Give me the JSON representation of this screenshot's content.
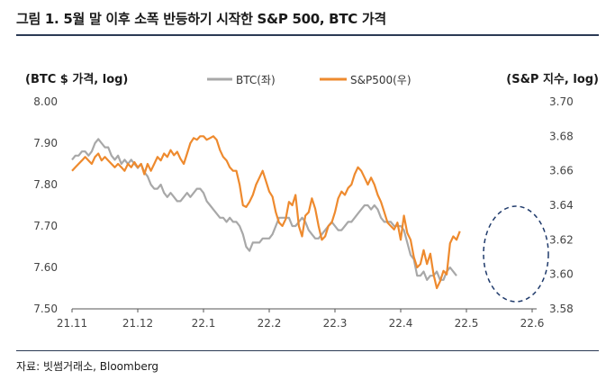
{
  "title": "그림 1. 5월 말 이후 소폭 반등하기 시작한 S&P 500, BTC 가격",
  "source": "자료: 빗썸거래소, Bloomberg",
  "colors": {
    "btc": "#a8a8a8",
    "sp500": "#ee8a2e",
    "ellipse": "#1f3a6b",
    "rule": "#2b3a55"
  },
  "chart_data": {
    "type": "line",
    "ylabel_left": "(BTC $ 가격,  log)",
    "ylabel_right": "(S&P 지수, log)",
    "x_ticks": [
      "21.11",
      "21.12",
      "22.1",
      "22.2",
      "22.3",
      "22.4",
      "22.5",
      "22.6"
    ],
    "y_left": {
      "ticks": [
        "8.00",
        "7.90",
        "7.80",
        "7.70",
        "7.60",
        "7.50"
      ],
      "range": [
        7.5,
        8.0
      ]
    },
    "y_right": {
      "ticks": [
        "3.70",
        "3.68",
        "3.66",
        "3.64",
        "3.62",
        "3.60",
        "3.58"
      ],
      "range": [
        3.58,
        3.7
      ]
    },
    "legend_position": "top-center",
    "annotation": "dashed ellipse around late May to June 2022",
    "series": [
      {
        "name": "BTC(좌)",
        "axis": "left",
        "color": "#a8a8a8",
        "points": [
          [
            0.0,
            7.86
          ],
          [
            0.05,
            7.87
          ],
          [
            0.1,
            7.87
          ],
          [
            0.15,
            7.88
          ],
          [
            0.2,
            7.88
          ],
          [
            0.25,
            7.87
          ],
          [
            0.3,
            7.88
          ],
          [
            0.35,
            7.9
          ],
          [
            0.4,
            7.91
          ],
          [
            0.45,
            7.9
          ],
          [
            0.5,
            7.89
          ],
          [
            0.55,
            7.89
          ],
          [
            0.6,
            7.87
          ],
          [
            0.65,
            7.86
          ],
          [
            0.7,
            7.87
          ],
          [
            0.75,
            7.85
          ],
          [
            0.8,
            7.86
          ],
          [
            0.85,
            7.85
          ],
          [
            0.9,
            7.86
          ],
          [
            0.95,
            7.85
          ],
          [
            1.0,
            7.84
          ],
          [
            1.05,
            7.85
          ],
          [
            1.1,
            7.83
          ],
          [
            1.15,
            7.82
          ],
          [
            1.2,
            7.8
          ],
          [
            1.25,
            7.79
          ],
          [
            1.3,
            7.79
          ],
          [
            1.35,
            7.8
          ],
          [
            1.4,
            7.78
          ],
          [
            1.45,
            7.77
          ],
          [
            1.5,
            7.78
          ],
          [
            1.55,
            7.77
          ],
          [
            1.6,
            7.76
          ],
          [
            1.65,
            7.76
          ],
          [
            1.7,
            7.77
          ],
          [
            1.75,
            7.78
          ],
          [
            1.8,
            7.77
          ],
          [
            1.85,
            7.78
          ],
          [
            1.9,
            7.79
          ],
          [
            1.95,
            7.79
          ],
          [
            2.0,
            7.78
          ],
          [
            2.05,
            7.76
          ],
          [
            2.1,
            7.75
          ],
          [
            2.15,
            7.74
          ],
          [
            2.2,
            7.73
          ],
          [
            2.25,
            7.72
          ],
          [
            2.3,
            7.72
          ],
          [
            2.35,
            7.71
          ],
          [
            2.4,
            7.72
          ],
          [
            2.45,
            7.71
          ],
          [
            2.5,
            7.71
          ],
          [
            2.55,
            7.7
          ],
          [
            2.6,
            7.68
          ],
          [
            2.65,
            7.65
          ],
          [
            2.7,
            7.64
          ],
          [
            2.75,
            7.66
          ],
          [
            2.8,
            7.66
          ],
          [
            2.85,
            7.66
          ],
          [
            2.9,
            7.67
          ],
          [
            2.95,
            7.67
          ],
          [
            3.0,
            7.67
          ],
          [
            3.05,
            7.68
          ],
          [
            3.1,
            7.7
          ],
          [
            3.15,
            7.72
          ],
          [
            3.2,
            7.72
          ],
          [
            3.25,
            7.72
          ],
          [
            3.3,
            7.72
          ],
          [
            3.35,
            7.7
          ],
          [
            3.4,
            7.7
          ],
          [
            3.45,
            7.71
          ],
          [
            3.5,
            7.72
          ],
          [
            3.55,
            7.71
          ],
          [
            3.6,
            7.69
          ],
          [
            3.65,
            7.68
          ],
          [
            3.7,
            7.67
          ],
          [
            3.75,
            7.67
          ],
          [
            3.8,
            7.68
          ],
          [
            3.85,
            7.69
          ],
          [
            3.9,
            7.7
          ],
          [
            3.95,
            7.71
          ],
          [
            4.0,
            7.7
          ],
          [
            4.05,
            7.69
          ],
          [
            4.1,
            7.69
          ],
          [
            4.15,
            7.7
          ],
          [
            4.2,
            7.71
          ],
          [
            4.25,
            7.71
          ],
          [
            4.3,
            7.72
          ],
          [
            4.35,
            7.73
          ],
          [
            4.4,
            7.74
          ],
          [
            4.45,
            7.75
          ],
          [
            4.5,
            7.75
          ],
          [
            4.55,
            7.74
          ],
          [
            4.6,
            7.75
          ],
          [
            4.65,
            7.74
          ],
          [
            4.7,
            7.72
          ],
          [
            4.75,
            7.71
          ],
          [
            4.8,
            7.71
          ],
          [
            4.85,
            7.71
          ],
          [
            4.9,
            7.7
          ],
          [
            4.95,
            7.7
          ],
          [
            5.0,
            7.7
          ],
          [
            5.05,
            7.69
          ],
          [
            5.1,
            7.66
          ],
          [
            5.15,
            7.63
          ],
          [
            5.2,
            7.62
          ],
          [
            5.25,
            7.58
          ],
          [
            5.3,
            7.58
          ],
          [
            5.35,
            7.59
          ],
          [
            5.4,
            7.57
          ],
          [
            5.45,
            7.58
          ],
          [
            5.5,
            7.58
          ],
          [
            5.55,
            7.59
          ],
          [
            5.6,
            7.57
          ],
          [
            5.65,
            7.57
          ],
          [
            5.7,
            7.59
          ],
          [
            5.75,
            7.6
          ],
          [
            5.8,
            7.59
          ],
          [
            5.85,
            7.58
          ]
        ]
      },
      {
        "name": "S&P500(우)",
        "axis": "right",
        "color": "#ee8a2e",
        "points": [
          [
            0.0,
            3.66
          ],
          [
            0.05,
            3.662
          ],
          [
            0.1,
            3.664
          ],
          [
            0.15,
            3.666
          ],
          [
            0.2,
            3.668
          ],
          [
            0.25,
            3.666
          ],
          [
            0.3,
            3.664
          ],
          [
            0.35,
            3.668
          ],
          [
            0.4,
            3.67
          ],
          [
            0.45,
            3.666
          ],
          [
            0.5,
            3.668
          ],
          [
            0.55,
            3.666
          ],
          [
            0.6,
            3.664
          ],
          [
            0.65,
            3.662
          ],
          [
            0.7,
            3.664
          ],
          [
            0.75,
            3.662
          ],
          [
            0.8,
            3.66
          ],
          [
            0.85,
            3.664
          ],
          [
            0.9,
            3.662
          ],
          [
            0.95,
            3.665
          ],
          [
            1.0,
            3.662
          ],
          [
            1.05,
            3.664
          ],
          [
            1.1,
            3.658
          ],
          [
            1.15,
            3.664
          ],
          [
            1.2,
            3.66
          ],
          [
            1.25,
            3.664
          ],
          [
            1.3,
            3.668
          ],
          [
            1.35,
            3.666
          ],
          [
            1.4,
            3.67
          ],
          [
            1.45,
            3.668
          ],
          [
            1.5,
            3.672
          ],
          [
            1.55,
            3.669
          ],
          [
            1.6,
            3.671
          ],
          [
            1.65,
            3.667
          ],
          [
            1.7,
            3.664
          ],
          [
            1.75,
            3.67
          ],
          [
            1.8,
            3.676
          ],
          [
            1.85,
            3.679
          ],
          [
            1.9,
            3.678
          ],
          [
            1.95,
            3.68
          ],
          [
            2.0,
            3.68
          ],
          [
            2.05,
            3.678
          ],
          [
            2.1,
            3.679
          ],
          [
            2.15,
            3.68
          ],
          [
            2.2,
            3.678
          ],
          [
            2.25,
            3.672
          ],
          [
            2.3,
            3.668
          ],
          [
            2.35,
            3.666
          ],
          [
            2.4,
            3.662
          ],
          [
            2.45,
            3.66
          ],
          [
            2.5,
            3.66
          ],
          [
            2.55,
            3.652
          ],
          [
            2.6,
            3.64
          ],
          [
            2.65,
            3.639
          ],
          [
            2.7,
            3.642
          ],
          [
            2.75,
            3.646
          ],
          [
            2.8,
            3.652
          ],
          [
            2.85,
            3.656
          ],
          [
            2.9,
            3.66
          ],
          [
            2.95,
            3.654
          ],
          [
            3.0,
            3.648
          ],
          [
            3.05,
            3.645
          ],
          [
            3.1,
            3.636
          ],
          [
            3.15,
            3.63
          ],
          [
            3.2,
            3.628
          ],
          [
            3.25,
            3.632
          ],
          [
            3.3,
            3.642
          ],
          [
            3.35,
            3.64
          ],
          [
            3.4,
            3.646
          ],
          [
            3.45,
            3.628
          ],
          [
            3.5,
            3.622
          ],
          [
            3.55,
            3.634
          ],
          [
            3.6,
            3.636
          ],
          [
            3.65,
            3.644
          ],
          [
            3.7,
            3.638
          ],
          [
            3.75,
            3.628
          ],
          [
            3.8,
            3.62
          ],
          [
            3.85,
            3.622
          ],
          [
            3.9,
            3.628
          ],
          [
            3.95,
            3.63
          ],
          [
            4.0,
            3.636
          ],
          [
            4.05,
            3.644
          ],
          [
            4.1,
            3.648
          ],
          [
            4.15,
            3.646
          ],
          [
            4.2,
            3.65
          ],
          [
            4.25,
            3.652
          ],
          [
            4.3,
            3.658
          ],
          [
            4.35,
            3.662
          ],
          [
            4.4,
            3.66
          ],
          [
            4.45,
            3.656
          ],
          [
            4.5,
            3.652
          ],
          [
            4.55,
            3.656
          ],
          [
            4.6,
            3.652
          ],
          [
            4.65,
            3.646
          ],
          [
            4.7,
            3.642
          ],
          [
            4.75,
            3.636
          ],
          [
            4.8,
            3.63
          ],
          [
            4.85,
            3.628
          ],
          [
            4.9,
            3.626
          ],
          [
            4.95,
            3.63
          ],
          [
            5.0,
            3.62
          ],
          [
            5.05,
            3.634
          ],
          [
            5.1,
            3.624
          ],
          [
            5.15,
            3.62
          ],
          [
            5.2,
            3.61
          ],
          [
            5.25,
            3.604
          ],
          [
            5.3,
            3.606
          ],
          [
            5.35,
            3.614
          ],
          [
            5.4,
            3.606
          ],
          [
            5.45,
            3.612
          ],
          [
            5.5,
            3.6
          ],
          [
            5.55,
            3.592
          ],
          [
            5.6,
            3.596
          ],
          [
            5.65,
            3.602
          ],
          [
            5.7,
            3.6
          ],
          [
            5.75,
            3.618
          ],
          [
            5.8,
            3.622
          ],
          [
            5.85,
            3.62
          ],
          [
            5.9,
            3.625
          ]
        ]
      }
    ]
  }
}
